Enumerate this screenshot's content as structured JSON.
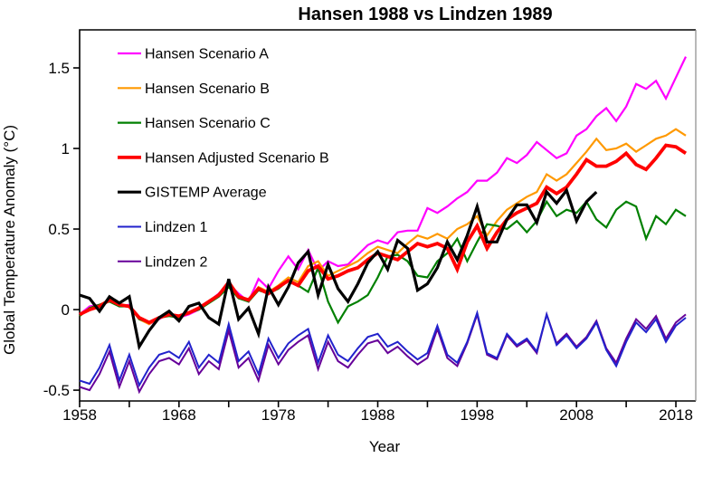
{
  "title": "Hansen 1988 vs Lindzen 1989",
  "axes": {
    "x_label": "Year",
    "y_label": "Global Temperature Anomaly (°C)",
    "x_tick_positions": [
      1958,
      1963,
      1968,
      1973,
      1978,
      1983,
      1988,
      1993,
      1998,
      2003,
      2008,
      2013,
      2018
    ],
    "x_labeled_ticks": [
      {
        "v": 1958,
        "label": "1958"
      },
      {
        "v": 1968,
        "label": "1968"
      },
      {
        "v": 1978,
        "label": "1978"
      },
      {
        "v": 1988,
        "label": "1988"
      },
      {
        "v": 1998,
        "label": "1998"
      },
      {
        "v": 2008,
        "label": "2008"
      },
      {
        "v": 2018,
        "label": "2018"
      }
    ],
    "y_ticks": [
      {
        "v": -0.5,
        "label": "-0.5"
      },
      {
        "v": 0,
        "label": "0"
      },
      {
        "v": 0.5,
        "label": "0.5"
      },
      {
        "v": 1,
        "label": "1"
      },
      {
        "v": 1.5,
        "label": "1.5"
      }
    ]
  },
  "colors": {
    "background": "#FFFFFF",
    "axis": "#000000",
    "border_right": "#888888"
  },
  "chart_data": {
    "type": "line",
    "title": "Hansen 1988 vs Lindzen 1989",
    "xlabel": "Year",
    "ylabel": "Global Temperature Anomaly (°C)",
    "grid": false,
    "legend_position": "top-left-inside",
    "x_range": [
      1958,
      2020
    ],
    "y_range": [
      -0.567,
      1.736
    ],
    "x": [
      1958,
      1959,
      1960,
      1961,
      1962,
      1963,
      1964,
      1965,
      1966,
      1967,
      1968,
      1969,
      1970,
      1971,
      1972,
      1973,
      1974,
      1975,
      1976,
      1977,
      1978,
      1979,
      1980,
      1981,
      1982,
      1983,
      1984,
      1985,
      1986,
      1987,
      1988,
      1989,
      1990,
      1991,
      1992,
      1993,
      1994,
      1995,
      1996,
      1997,
      1998,
      1999,
      2000,
      2001,
      2002,
      2003,
      2004,
      2005,
      2006,
      2007,
      2008,
      2009,
      2010,
      2011,
      2012,
      2013,
      2014,
      2015,
      2016,
      2017,
      2018,
      2019
    ],
    "series": [
      {
        "name": "Hansen Scenario A",
        "color": "#FF00FF",
        "width": 2.2,
        "z": 1,
        "values": [
          -0.03,
          0.02,
          0.03,
          0.06,
          0.02,
          0.03,
          -0.05,
          -0.09,
          -0.06,
          -0.02,
          -0.05,
          -0.03,
          0.0,
          0.05,
          0.1,
          0.16,
          0.1,
          0.05,
          0.19,
          0.13,
          0.24,
          0.33,
          0.25,
          0.37,
          0.24,
          0.3,
          0.27,
          0.28,
          0.34,
          0.4,
          0.43,
          0.41,
          0.48,
          0.49,
          0.49,
          0.63,
          0.6,
          0.64,
          0.69,
          0.73,
          0.8,
          0.8,
          0.85,
          0.94,
          0.91,
          0.96,
          1.04,
          0.99,
          0.94,
          0.97,
          1.08,
          1.12,
          1.2,
          1.25,
          1.17,
          1.26,
          1.4,
          1.37,
          1.42,
          1.31,
          1.44,
          1.57
        ]
      },
      {
        "name": "Hansen Scenario B",
        "color": "#FF9900",
        "width": 2.2,
        "z": 2,
        "values": [
          -0.04,
          0.01,
          0.03,
          0.06,
          0.03,
          0.02,
          -0.06,
          -0.09,
          -0.05,
          -0.03,
          -0.04,
          -0.02,
          0.01,
          0.05,
          0.09,
          0.15,
          0.08,
          0.06,
          0.14,
          0.11,
          0.15,
          0.2,
          0.17,
          0.27,
          0.3,
          0.21,
          0.24,
          0.27,
          0.3,
          0.35,
          0.39,
          0.37,
          0.35,
          0.41,
          0.46,
          0.44,
          0.47,
          0.44,
          0.5,
          0.53,
          0.58,
          0.46,
          0.55,
          0.62,
          0.66,
          0.7,
          0.73,
          0.84,
          0.8,
          0.84,
          0.91,
          0.98,
          1.06,
          0.99,
          1.0,
          1.03,
          0.98,
          1.02,
          1.06,
          1.08,
          1.12,
          1.08
        ]
      },
      {
        "name": "Hansen Scenario C",
        "color": "#008000",
        "width": 2.2,
        "z": 3,
        "values": [
          -0.04,
          0.01,
          0.03,
          0.05,
          0.02,
          0.02,
          -0.06,
          -0.08,
          -0.05,
          -0.04,
          -0.05,
          -0.02,
          0.0,
          0.04,
          0.08,
          0.14,
          0.07,
          0.05,
          0.12,
          0.1,
          0.13,
          0.18,
          0.15,
          0.11,
          0.26,
          0.05,
          -0.08,
          0.02,
          0.05,
          0.09,
          0.2,
          0.33,
          0.34,
          0.3,
          0.21,
          0.2,
          0.3,
          0.35,
          0.44,
          0.3,
          0.42,
          0.53,
          0.52,
          0.5,
          0.55,
          0.48,
          0.55,
          0.67,
          0.58,
          0.62,
          0.6,
          0.67,
          0.56,
          0.51,
          0.62,
          0.67,
          0.64,
          0.44,
          0.58,
          0.53,
          0.62,
          0.58
        ]
      },
      {
        "name": "Hansen Adjusted Scenario B",
        "color": "#FF0000",
        "width": 3.8,
        "z": 6,
        "values": [
          -0.03,
          0.0,
          0.02,
          0.06,
          0.03,
          0.02,
          -0.05,
          -0.08,
          -0.05,
          -0.03,
          -0.04,
          -0.02,
          0.01,
          0.05,
          0.09,
          0.17,
          0.08,
          0.06,
          0.13,
          0.1,
          0.14,
          0.18,
          0.15,
          0.24,
          0.27,
          0.19,
          0.21,
          0.24,
          0.26,
          0.31,
          0.35,
          0.33,
          0.31,
          0.36,
          0.41,
          0.39,
          0.41,
          0.38,
          0.25,
          0.42,
          0.52,
          0.38,
          0.48,
          0.56,
          0.6,
          0.63,
          0.66,
          0.76,
          0.72,
          0.76,
          0.84,
          0.93,
          0.89,
          0.89,
          0.92,
          0.97,
          0.9,
          0.87,
          0.94,
          1.02,
          1.01,
          0.97
        ]
      },
      {
        "name": "GISTEMP Average",
        "color": "#000000",
        "width": 3.2,
        "z": 7,
        "values": [
          0.09,
          0.07,
          -0.01,
          0.08,
          0.04,
          0.08,
          -0.23,
          -0.13,
          -0.05,
          -0.01,
          -0.07,
          0.02,
          0.04,
          -0.05,
          -0.09,
          0.19,
          -0.06,
          0.01,
          -0.15,
          0.14,
          0.03,
          0.14,
          0.29,
          0.36,
          0.09,
          0.28,
          0.13,
          0.05,
          0.16,
          0.29,
          0.36,
          0.25,
          0.43,
          0.38,
          0.12,
          0.16,
          0.26,
          0.42,
          0.31,
          0.46,
          0.64,
          0.42,
          0.42,
          0.56,
          0.65,
          0.65,
          0.54,
          0.73,
          0.66,
          0.74,
          0.55,
          0.67,
          0.73
        ]
      },
      {
        "name": "Lindzen 1",
        "color": "#2222CC",
        "width": 2.0,
        "z": 5,
        "values": [
          -0.44,
          -0.46,
          -0.36,
          -0.22,
          -0.44,
          -0.28,
          -0.47,
          -0.36,
          -0.28,
          -0.26,
          -0.3,
          -0.2,
          -0.36,
          -0.28,
          -0.33,
          -0.09,
          -0.32,
          -0.26,
          -0.4,
          -0.18,
          -0.3,
          -0.21,
          -0.16,
          -0.12,
          -0.33,
          -0.16,
          -0.28,
          -0.32,
          -0.24,
          -0.17,
          -0.15,
          -0.23,
          -0.2,
          -0.26,
          -0.31,
          -0.27,
          -0.1,
          -0.28,
          -0.33,
          -0.2,
          -0.02,
          -0.27,
          -0.3,
          -0.15,
          -0.22,
          -0.18,
          -0.26,
          -0.03,
          -0.22,
          -0.16,
          -0.24,
          -0.18,
          -0.08,
          -0.25,
          -0.35,
          -0.2,
          -0.08,
          -0.14,
          -0.06,
          -0.2,
          -0.1,
          -0.05
        ]
      },
      {
        "name": "Lindzen 2",
        "color": "#660099",
        "width": 2.0,
        "z": 4,
        "values": [
          -0.48,
          -0.5,
          -0.4,
          -0.26,
          -0.48,
          -0.32,
          -0.51,
          -0.4,
          -0.32,
          -0.3,
          -0.34,
          -0.24,
          -0.4,
          -0.32,
          -0.37,
          -0.13,
          -0.36,
          -0.3,
          -0.44,
          -0.22,
          -0.34,
          -0.25,
          -0.2,
          -0.16,
          -0.37,
          -0.2,
          -0.32,
          -0.36,
          -0.28,
          -0.21,
          -0.19,
          -0.27,
          -0.23,
          -0.29,
          -0.34,
          -0.3,
          -0.12,
          -0.3,
          -0.35,
          -0.21,
          -0.03,
          -0.28,
          -0.31,
          -0.16,
          -0.23,
          -0.19,
          -0.27,
          -0.03,
          -0.21,
          -0.15,
          -0.23,
          -0.17,
          -0.07,
          -0.24,
          -0.33,
          -0.18,
          -0.06,
          -0.12,
          -0.04,
          -0.18,
          -0.08,
          -0.03
        ]
      }
    ]
  }
}
